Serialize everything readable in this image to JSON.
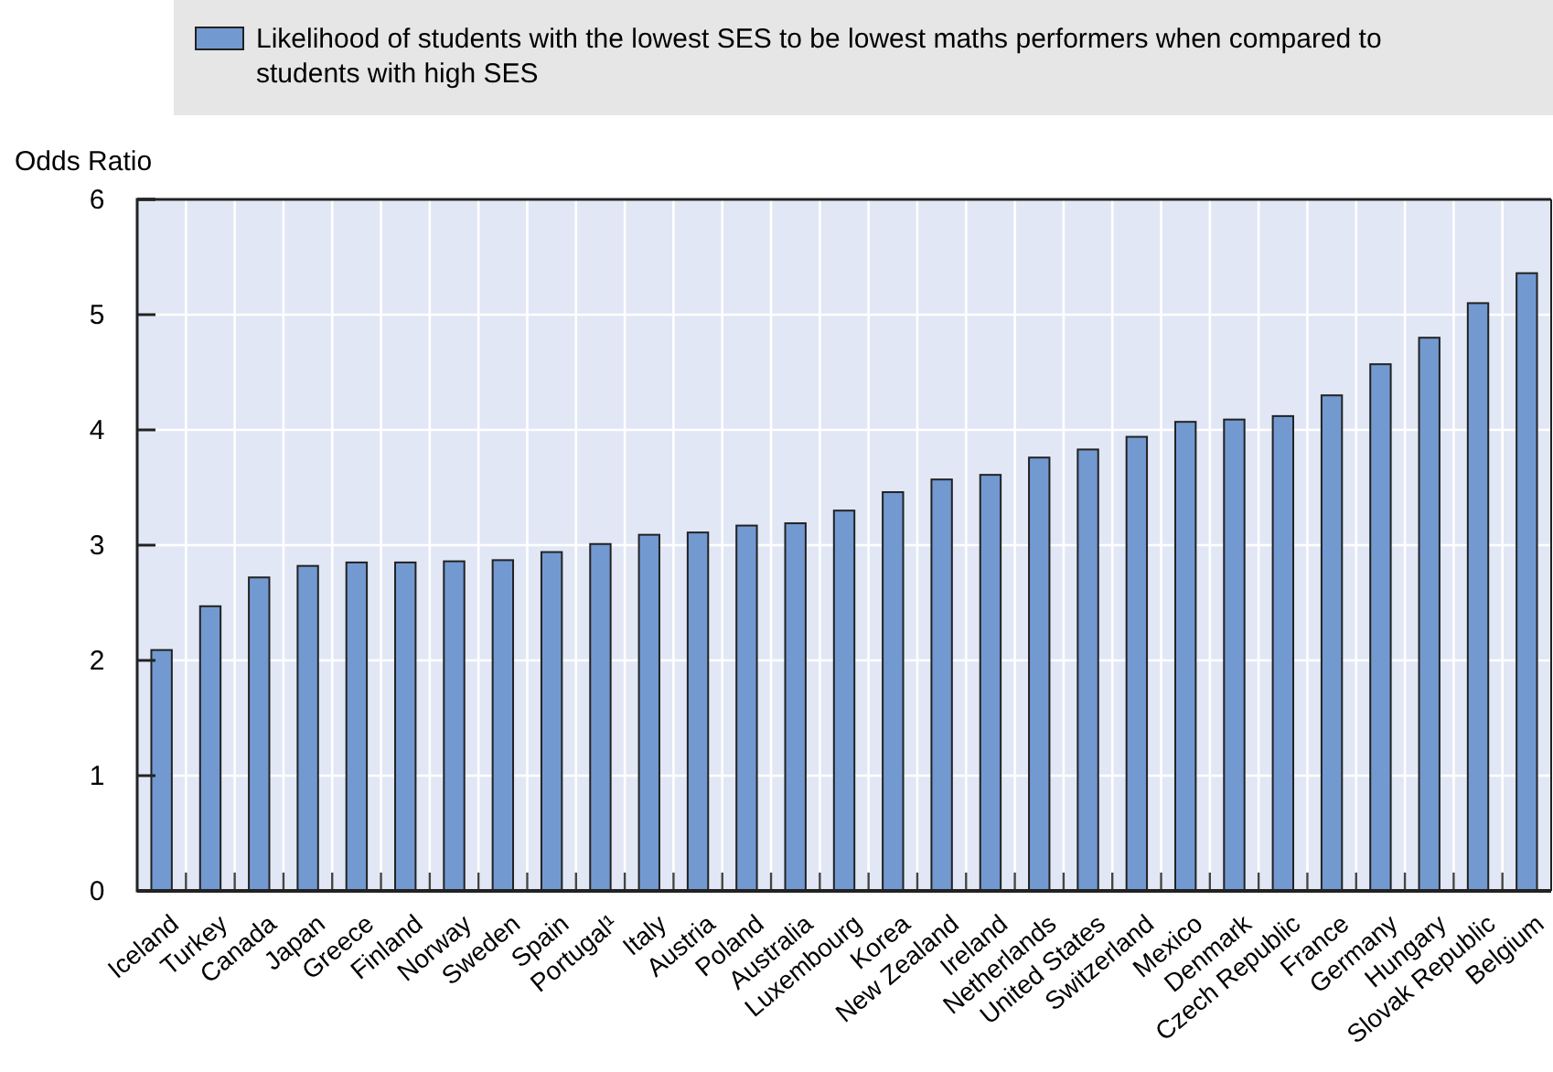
{
  "chart_data": {
    "type": "bar",
    "ylabel": "Odds Ratio",
    "categories": [
      "Iceland",
      "Turkey",
      "Canada",
      "Japan",
      "Greece",
      "Finland",
      "Norway",
      "Sweden",
      "Spain",
      "Portugal¹",
      "Italy",
      "Austria",
      "Poland",
      "Australia",
      "Luxembourg",
      "Korea",
      "New Zealand",
      "Ireland",
      "Netherlands",
      "United States",
      "Switzerland",
      "Mexico",
      "Denmark",
      "Czech Republic",
      "France",
      "Germany",
      "Hungary",
      "Slovak Republic",
      "Belgium"
    ],
    "series": [
      {
        "name": "Likelihood of students with the lowest SES to be lowest maths performers when compared to students with high SES",
        "color": "#7399d1",
        "values": [
          2.09,
          2.47,
          2.72,
          2.82,
          2.85,
          2.85,
          2.86,
          2.87,
          2.94,
          3.01,
          3.09,
          3.11,
          3.17,
          3.19,
          3.3,
          3.46,
          3.57,
          3.61,
          3.76,
          3.83,
          3.94,
          4.07,
          4.09,
          4.12,
          4.3,
          4.57,
          4.8,
          5.1,
          5.36
        ]
      }
    ],
    "ylim": [
      0,
      6
    ],
    "yticks": [
      0,
      1,
      2,
      3,
      4,
      5,
      6
    ],
    "grid": true,
    "legend": "top"
  }
}
